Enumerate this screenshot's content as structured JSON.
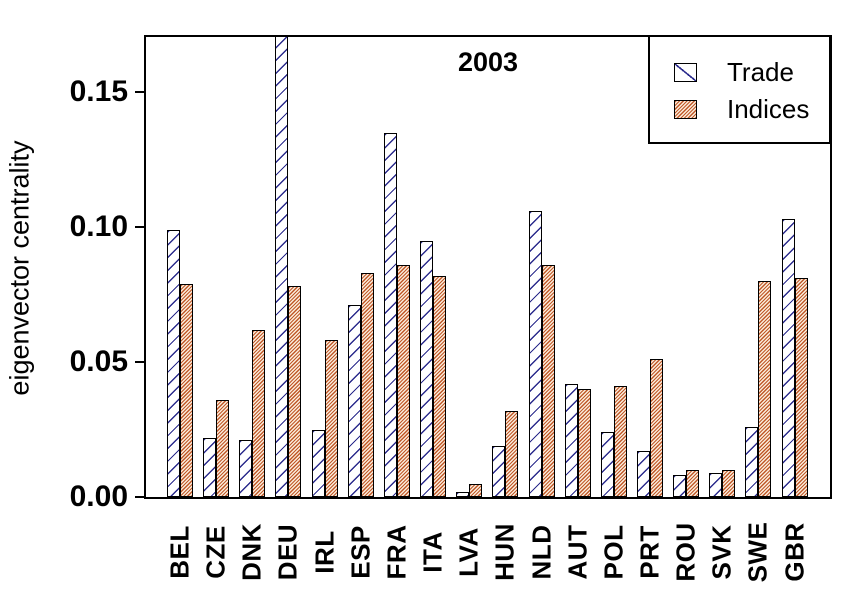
{
  "title": "2003",
  "ylabel": "eigenvector centrality",
  "legend": {
    "position": "top-right",
    "items": [
      {
        "label": "Trade",
        "swatch": "trade-hatch-swatch"
      },
      {
        "label": "Indices",
        "swatch": "indices-hatch-swatch"
      }
    ]
  },
  "colors": {
    "trade_hatch_line": "#2b2b8c",
    "trade_fill": "#ffffff",
    "indices_hatch_line": "#c05a2a",
    "indices_fill": "#fbead9",
    "bar_border": "#000000",
    "axis": "#000000"
  },
  "chart_data": {
    "type": "bar",
    "title": "2003",
    "xlabel": "",
    "ylabel": "eigenvector centrality",
    "grid": false,
    "legend_position": "top-right",
    "ylim": [
      0,
      0.171
    ],
    "yticks": [
      0,
      0.05,
      0.1,
      0.15
    ],
    "ytick_labels": [
      "0.00",
      "0.05",
      "0.10",
      "0.15"
    ],
    "hatch_style": {
      "Trade": "sparse navy / diagonal on white",
      "Indices": "dense orange / diagonal"
    },
    "categories": [
      "BEL",
      "CZE",
      "DNK",
      "DEU",
      "IRL",
      "ESP",
      "FRA",
      "ITA",
      "LVA",
      "HUN",
      "NLD",
      "AUT",
      "POL",
      "PRT",
      "ROU",
      "SVK",
      "SWE",
      "GBR"
    ],
    "series": [
      {
        "name": "Trade",
        "values": [
          0.099,
          0.022,
          0.021,
          0.172,
          0.025,
          0.071,
          0.135,
          0.095,
          0.002,
          0.019,
          0.106,
          0.042,
          0.024,
          0.017,
          0.008,
          0.009,
          0.026,
          0.103
        ]
      },
      {
        "name": "Indices",
        "values": [
          0.079,
          0.036,
          0.062,
          0.078,
          0.058,
          0.083,
          0.086,
          0.082,
          0.005,
          0.032,
          0.086,
          0.04,
          0.041,
          0.051,
          0.01,
          0.01,
          0.08,
          0.081
        ]
      }
    ],
    "notes": "DEU Trade bar is clipped at the top of the plot frame (exceeds axis maximum)."
  }
}
